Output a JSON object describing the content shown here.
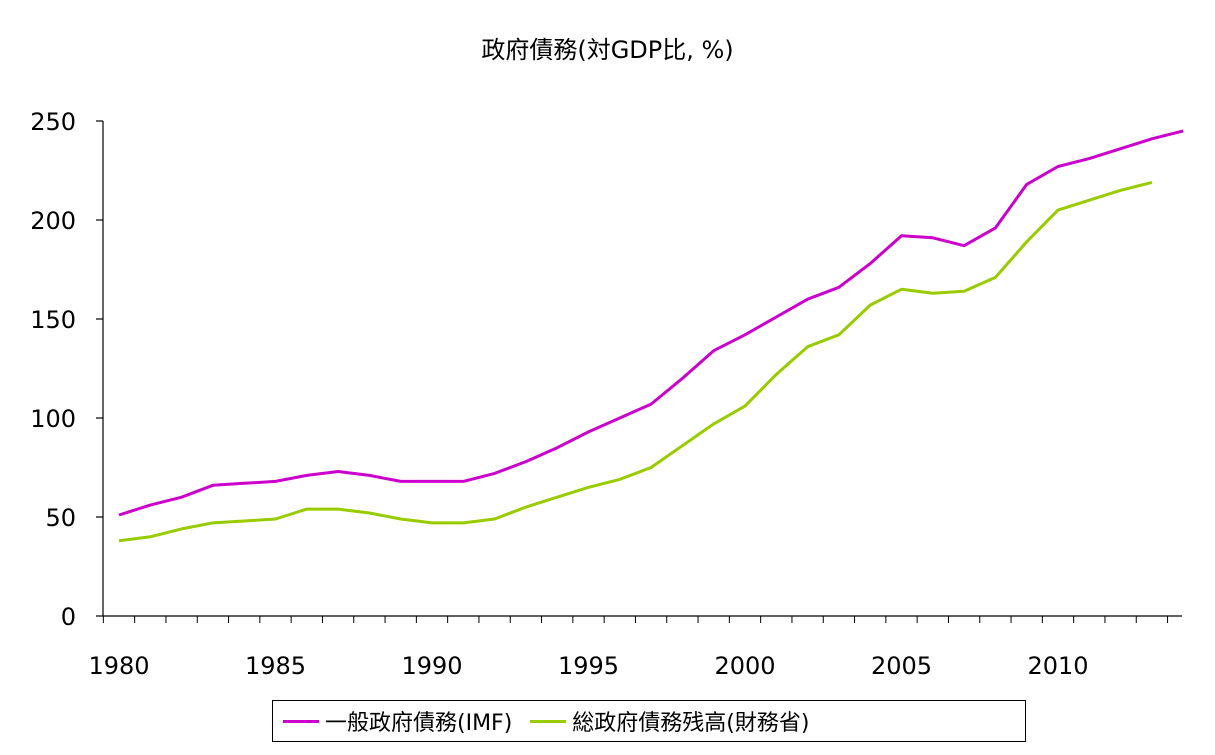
{
  "chart_data": {
    "type": "line",
    "title": "政府債務(対GDP比, %)",
    "xlabel": "",
    "ylabel": "",
    "xlim": [
      1980,
      2014
    ],
    "ylim": [
      0,
      250
    ],
    "x_ticks": [
      1980,
      1985,
      1990,
      1995,
      2000,
      2005,
      2010
    ],
    "y_ticks": [
      0,
      50,
      100,
      150,
      200,
      250
    ],
    "grid": false,
    "legend_position": "bottom",
    "series": [
      {
        "name": "一般政府債務(IMF)",
        "color": "#cc00cc",
        "x": [
          1980,
          1981,
          1982,
          1983,
          1984,
          1985,
          1986,
          1987,
          1988,
          1989,
          1990,
          1991,
          1992,
          1993,
          1994,
          1995,
          1996,
          1997,
          1998,
          1999,
          2000,
          2001,
          2002,
          2003,
          2004,
          2005,
          2006,
          2007,
          2008,
          2009,
          2010,
          2011,
          2012,
          2013,
          2014
        ],
        "values": [
          51,
          56,
          60,
          66,
          67,
          68,
          71,
          73,
          71,
          68,
          68,
          68,
          72,
          78,
          85,
          93,
          100,
          107,
          120,
          134,
          142,
          151,
          160,
          166,
          178,
          192,
          191,
          187,
          196,
          218,
          227,
          231,
          236,
          241,
          245
        ]
      },
      {
        "name": "総政府債務残高(財務省)",
        "color": "#99cc00",
        "x": [
          1980,
          1981,
          1982,
          1983,
          1984,
          1985,
          1986,
          1987,
          1988,
          1989,
          1990,
          1991,
          1992,
          1993,
          1994,
          1995,
          1996,
          1997,
          1998,
          1999,
          2000,
          2001,
          2002,
          2003,
          2004,
          2005,
          2006,
          2007,
          2008,
          2009,
          2010,
          2011,
          2012,
          2013
        ],
        "values": [
          38,
          40,
          44,
          47,
          48,
          49,
          54,
          54,
          52,
          49,
          47,
          47,
          49,
          55,
          60,
          65,
          69,
          75,
          86,
          97,
          106,
          122,
          136,
          142,
          157,
          165,
          163,
          164,
          171,
          189,
          205,
          210,
          215,
          219
        ]
      }
    ]
  }
}
